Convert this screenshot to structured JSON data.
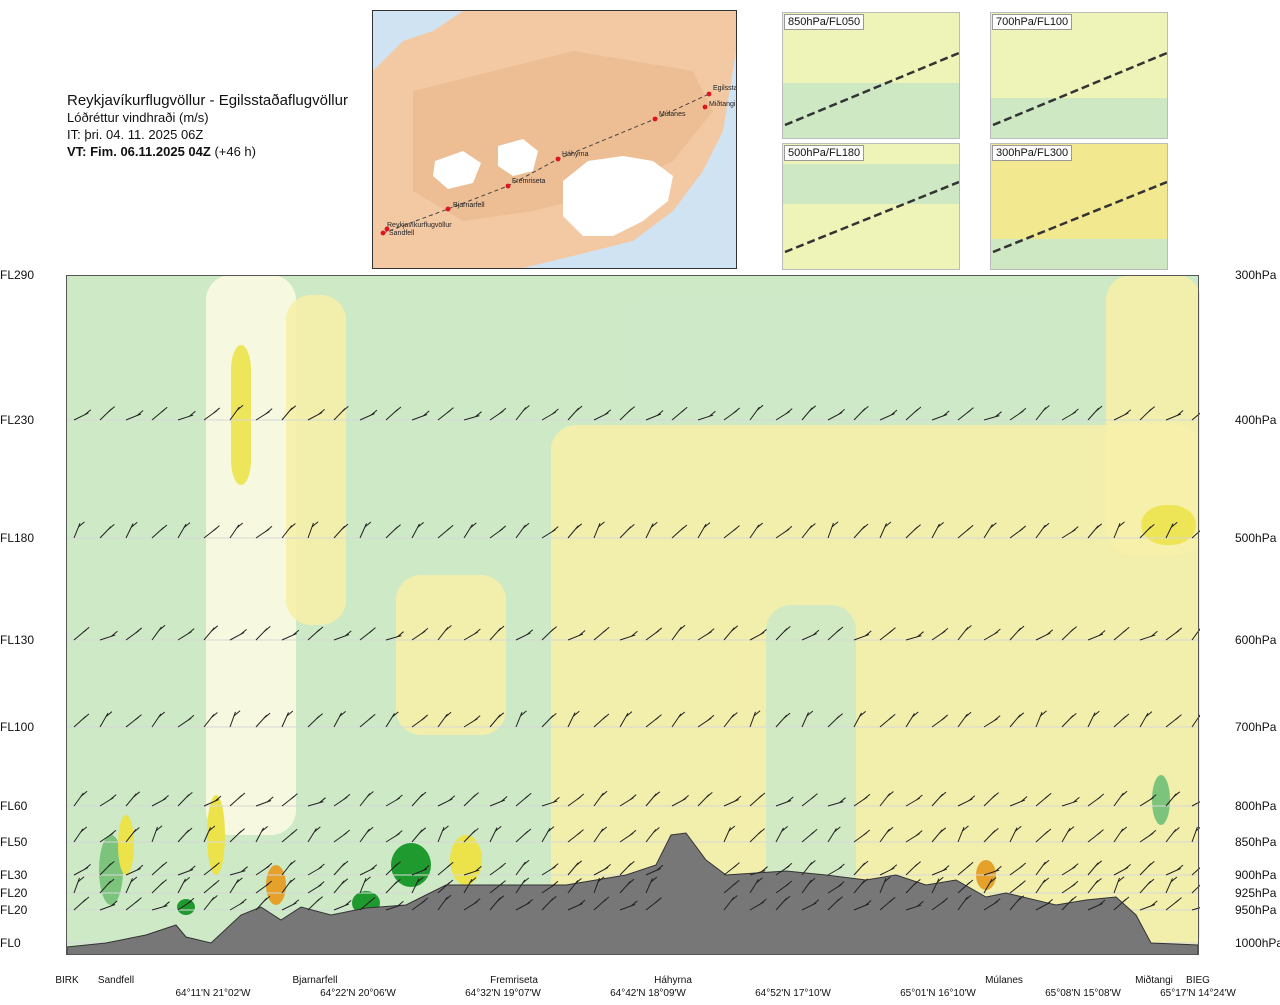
{
  "header": {
    "route": "Reykjavíkurflugvöllur - Egilsstaðaflugvöllur",
    "subtitle": "Lóðréttur vindhraði (m/s)",
    "it": "IT: þri. 04. 11. 2025 06Z",
    "vt_bold": "VT: Fim. 06.11.2025 04Z",
    "vt_offset": "(+46 h)"
  },
  "map": {
    "waypoints": [
      "Reykjavíkurflugvöllur",
      "Sandfell",
      "Bjarnarfell",
      "Fremriseta",
      "Háhyrna",
      "Múlanes",
      "Miðtangi",
      "Egilsstaðir"
    ],
    "colors": {
      "sea": "#cfe3f3",
      "land": "#f3c9a4",
      "glacier": "#ffffff",
      "route": "#444444",
      "point": "#e0141c"
    }
  },
  "thumbnails": [
    {
      "label": "850hPa/FL050"
    },
    {
      "label": "700hPa/FL100"
    },
    {
      "label": "500hPa/FL180"
    },
    {
      "label": "300hPa/FL300"
    }
  ],
  "chart_data": {
    "type": "heatmap",
    "title": "Lóðréttur vindhraði (m/s)",
    "left_axis_labels": [
      "FL290",
      "FL230",
      "FL180",
      "FL130",
      "FL100",
      "FL60",
      "FL50",
      "FL30",
      "FL20",
      "FL20",
      "FL0"
    ],
    "right_axis_labels": [
      "300hPa",
      "400hPa",
      "500hPa",
      "600hPa",
      "700hPa",
      "800hPa",
      "850hPa",
      "900hPa",
      "925hPa",
      "950hPa",
      "1000hPa"
    ],
    "pressure_levels_hpa": [
      300,
      400,
      500,
      600,
      700,
      800,
      850,
      900,
      925,
      950,
      1000
    ],
    "locations": [
      "BIRK",
      "Sandfell",
      "Bjarnarfell",
      "Fremriseta",
      "Háhyrna",
      "Múlanes",
      "Miðtangi",
      "BIEG"
    ],
    "coordinates": [
      "64°11'N 21°02'W",
      "64°22'N 20°06'W",
      "64°32'N 19°07'W",
      "64°42'N 18°09'W",
      "64°52'N 17°10'W",
      "65°01'N 16°10'W",
      "65°08'N 15°08'W",
      "65°17'N 14°24'W"
    ],
    "colors": {
      "down_strong": "#1f9a2e",
      "down": "#7cc47b",
      "down_weak": "#cde9c6",
      "neutral": "#fbfbe2",
      "up_weak": "#f6efaa",
      "up": "#ece34b",
      "up_strong": "#e5a12a",
      "terrain": "#777777"
    },
    "grid": true
  }
}
